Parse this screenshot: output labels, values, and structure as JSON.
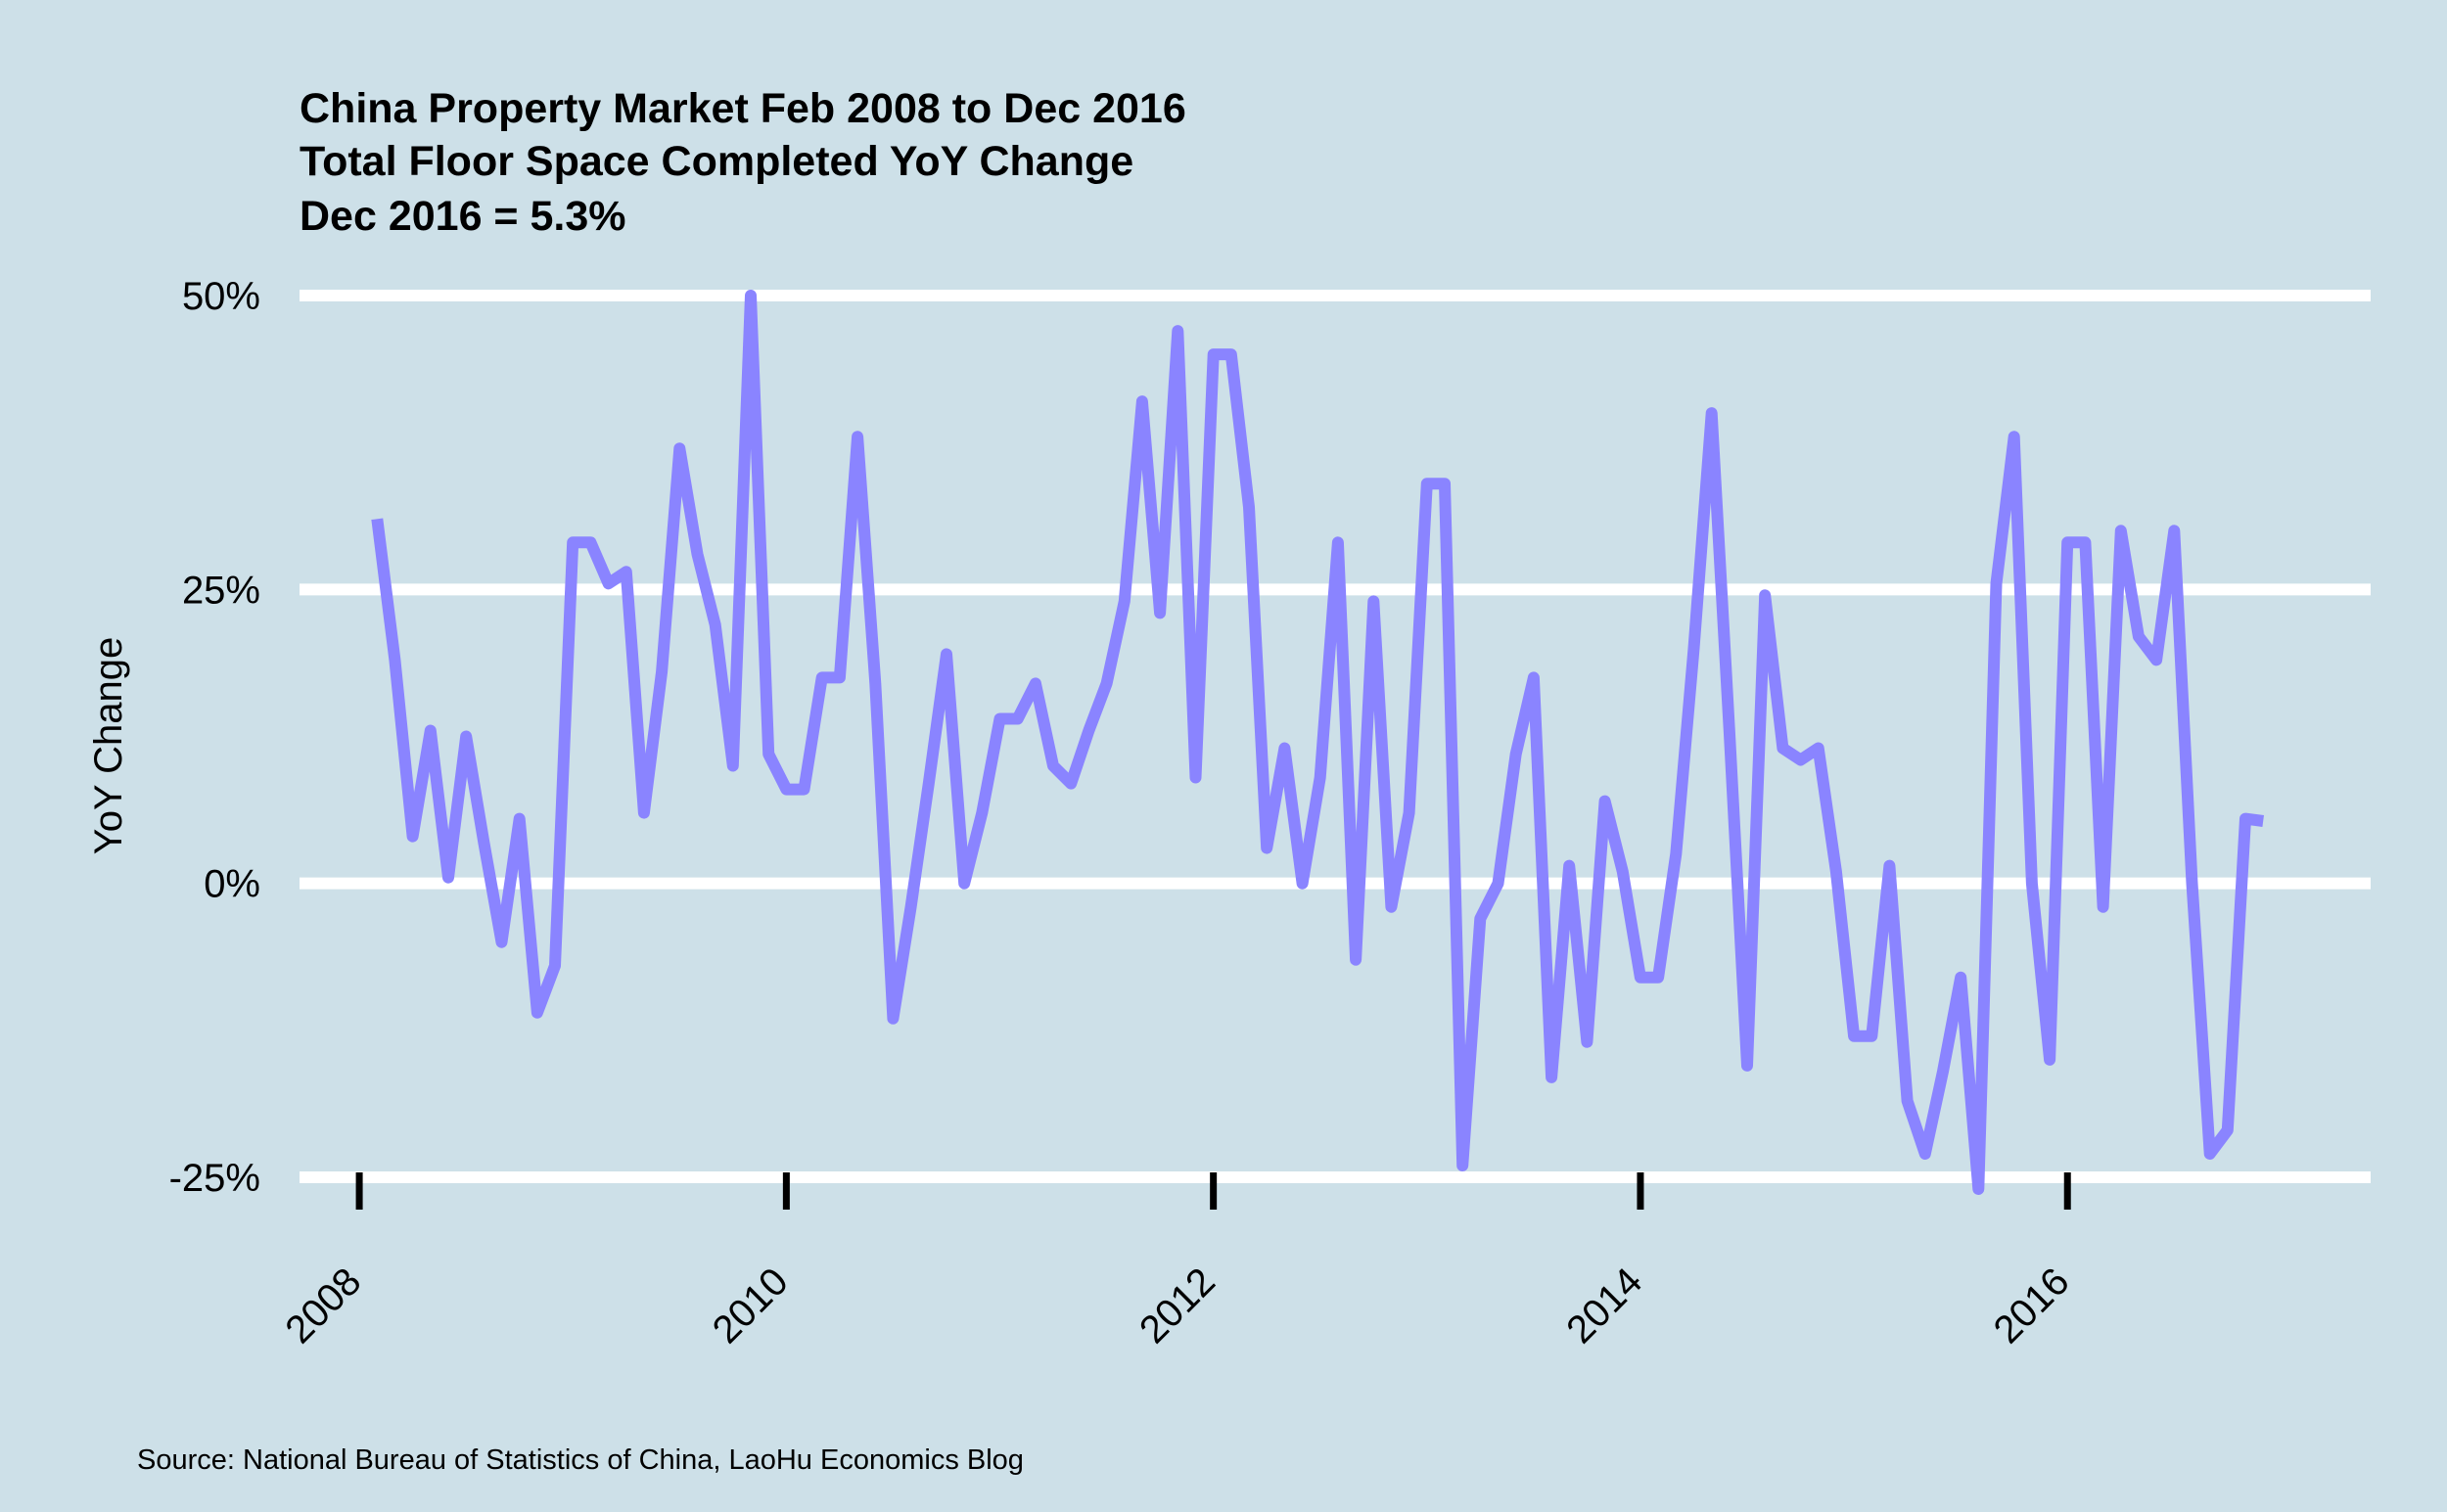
{
  "chart_data": {
    "type": "line",
    "title": "China Property Market Feb 2008 to Dec 2016",
    "subtitle": "Total Floor Space Completed YoY Change",
    "annotation": "Dec 2016 = 5.3%",
    "xlabel": "",
    "ylabel": "YoY Change",
    "xlim": [
      2007.72,
      2017.42
    ],
    "ylim": [
      -0.26,
      0.51
    ],
    "y_ticks": [
      -0.25,
      0,
      0.25,
      0.5
    ],
    "y_tick_labels": [
      "-25%",
      "0%",
      "25%",
      "50%"
    ],
    "x_ticks": [
      2008,
      2010,
      2012,
      2014,
      2016
    ],
    "x_tick_labels": [
      "2008",
      "2010",
      "2012",
      "2014",
      "2016"
    ],
    "grid": "horizontal",
    "line_color": "#8a84ff",
    "background": "#cde0e8",
    "series": [
      {
        "x": [
          "2008-02",
          "2008-03",
          "2008-04",
          "2008-05",
          "2008-06",
          "2008-07",
          "2008-08",
          "2008-09",
          "2008-10",
          "2008-11",
          "2008-12",
          "2009-01",
          "2009-02",
          "2009-03",
          "2009-04",
          "2009-05",
          "2009-06",
          "2009-07",
          "2009-08",
          "2009-09",
          "2009-10",
          "2009-11",
          "2009-12",
          "2010-01",
          "2010-02",
          "2010-03",
          "2010-04",
          "2010-05",
          "2010-06",
          "2010-07",
          "2010-08",
          "2010-09",
          "2010-10",
          "2010-11",
          "2010-12",
          "2011-01",
          "2011-02",
          "2011-03",
          "2011-04",
          "2011-05",
          "2011-06",
          "2011-07",
          "2011-08",
          "2011-09",
          "2011-10",
          "2011-11",
          "2011-12",
          "2012-01",
          "2012-02",
          "2012-03",
          "2012-04",
          "2012-05",
          "2012-06",
          "2012-07",
          "2012-08",
          "2012-09",
          "2012-10",
          "2012-11",
          "2012-12",
          "2013-01",
          "2013-02",
          "2013-03",
          "2013-04",
          "2013-05",
          "2013-06",
          "2013-07",
          "2013-08",
          "2013-09",
          "2013-10",
          "2013-11",
          "2013-12",
          "2014-01",
          "2014-02",
          "2014-03",
          "2014-04",
          "2014-05",
          "2014-06",
          "2014-07",
          "2014-08",
          "2014-09",
          "2014-10",
          "2014-11",
          "2014-12",
          "2015-01",
          "2015-02",
          "2015-03",
          "2015-04",
          "2015-05",
          "2015-06",
          "2015-07",
          "2015-08",
          "2015-09",
          "2015-10",
          "2015-11",
          "2015-12",
          "2016-01",
          "2016-02",
          "2016-03",
          "2016-04",
          "2016-05",
          "2016-06",
          "2016-07",
          "2016-08",
          "2016-09",
          "2016-10",
          "2016-11",
          "2016-12"
        ],
        "y": [
          0.31,
          0.19,
          0.04,
          0.13,
          0.005,
          0.125,
          0.035,
          -0.05,
          0.055,
          -0.11,
          -0.07,
          0.29,
          0.29,
          0.255,
          0.265,
          0.06,
          0.18,
          0.37,
          0.28,
          0.22,
          0.1,
          0.5,
          0.11,
          0.08,
          0.08,
          0.175,
          0.175,
          0.38,
          0.17,
          -0.115,
          -0.02,
          0.085,
          0.195,
          0.0,
          0.06,
          0.14,
          0.14,
          0.17,
          0.1,
          0.085,
          0.13,
          0.17,
          0.24,
          0.41,
          0.23,
          0.47,
          0.09,
          0.45,
          0.45,
          0.32,
          0.03,
          0.115,
          0.0,
          0.09,
          0.29,
          -0.065,
          0.24,
          -0.02,
          0.06,
          0.34,
          0.34,
          -0.24,
          -0.03,
          0.0,
          0.11,
          0.175,
          -0.165,
          0.015,
          -0.135,
          0.07,
          0.01,
          -0.08,
          -0.08,
          0.025,
          0.2,
          0.4,
          0.13,
          -0.155,
          0.245,
          0.115,
          0.105,
          0.115,
          0.01,
          -0.13,
          -0.13,
          0.015,
          -0.185,
          -0.23,
          -0.16,
          -0.08,
          -0.26,
          0.255,
          0.38,
          0.0,
          -0.15,
          0.29,
          0.29,
          -0.02,
          0.3,
          0.21,
          0.19,
          0.3,
          0.0,
          -0.23,
          -0.21,
          0.055,
          0.053
        ]
      }
    ]
  },
  "source": "Source: National Bureau of Statistics of China, LaoHu Economics Blog"
}
